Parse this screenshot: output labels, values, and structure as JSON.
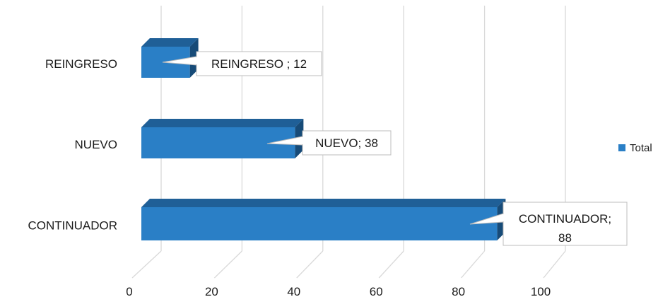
{
  "chart_data": {
    "type": "bar",
    "orientation": "horizontal",
    "style": "3d",
    "categories": [
      "REINGRESO",
      "NUEVO",
      "CONTINUADOR"
    ],
    "series": [
      {
        "name": "Total",
        "values": [
          12,
          38,
          88
        ],
        "color": "#2a7fc6"
      }
    ],
    "data_labels": [
      "REINGRESO ; 12",
      "NUEVO; 38",
      "CONTINUADOR; 88"
    ],
    "xticks": [
      "0",
      "20",
      "40",
      "60",
      "80",
      "100"
    ],
    "xlim": [
      0,
      100
    ],
    "grid": true,
    "legend": {
      "position": "right",
      "label": "Total"
    }
  }
}
